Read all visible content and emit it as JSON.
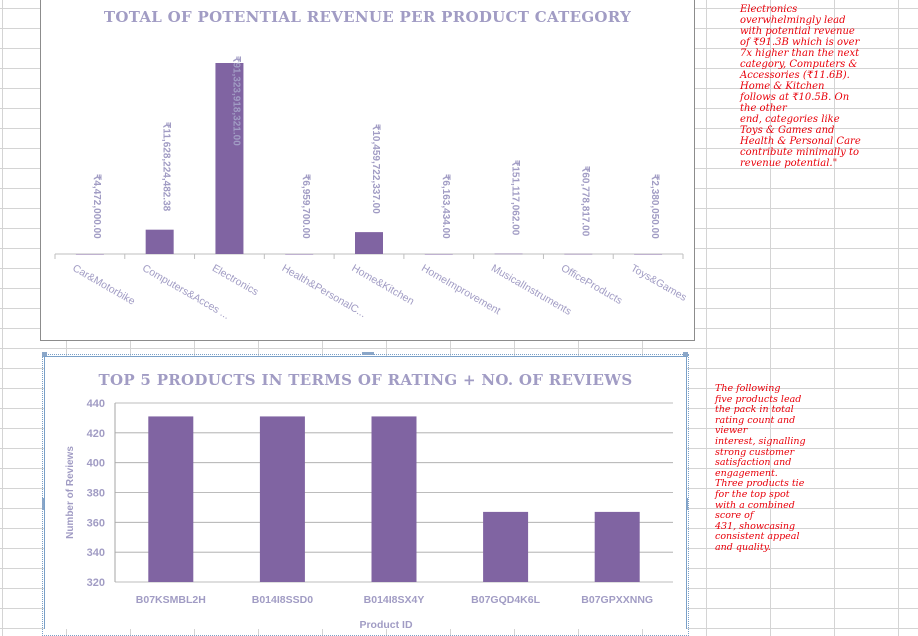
{
  "chart_data": [
    {
      "type": "bar",
      "title": "TOTAL OF POTENTIAL REVENUE PER PRODUCT CATEGORY",
      "categories": [
        "Car&Motorbike",
        "Computers&Acces ...",
        "Electronics",
        "Health&PersonalC...",
        "Home&Kitchen",
        "HomeImprovement",
        "MusicalInstruments",
        "OfficeProducts",
        "Toys&Games"
      ],
      "values": [
        4472000,
        11628224482.38,
        91323918321,
        6959700,
        10459722337,
        6163434,
        151117062,
        60778817,
        2380050
      ],
      "data_labels": [
        "₹4,472,000.00",
        "₹11,628,224,482.38",
        "₹91,323,918,321.00",
        "₹6,959,700.00",
        "₹10,459,722,337.00",
        "₹6,163,434.00",
        "₹151,117,062.00",
        "₹60,778,817.00",
        "₹2,380,050.00"
      ],
      "color": "#8064a2",
      "grid": false,
      "legend": "none"
    },
    {
      "type": "bar",
      "title": "TOP 5 PRODUCTS IN TERMS OF RATING + NO. OF REVIEWS",
      "categories": [
        "B07KSMBL2H",
        "B014I8SSD0",
        "B014I8SX4Y",
        "B07GQD4K6L",
        "B07GPXXNNG"
      ],
      "values": [
        431,
        431,
        431,
        367,
        367
      ],
      "xlabel": "Product  ID",
      "ylabel": "Number of  Reviews",
      "ylim": [
        320,
        440
      ],
      "yticks": [
        "320",
        "340",
        "360",
        "380",
        "400",
        "420",
        "440"
      ],
      "color": "#8064a2",
      "grid": true,
      "legend": "none"
    }
  ],
  "notes": {
    "note1": [
      "Electronics",
      "overwhelmingly lead",
      "with potential revenue",
      "of ₹91.3B which is over",
      "7x higher than the next",
      "category, Computers &",
      "Accessories (₹11.6B).",
      "Home & Kitchen",
      "follows at ₹10.5B. On",
      "the other",
      "end, categories like",
      "Toys & Games and",
      "Health & Personal Care",
      "contribute minimally to",
      "revenue potential.\""
    ],
    "note2": [
      "The following",
      "five products lead",
      "the pack in total",
      "rating count and",
      "viewer",
      "interest, signalling",
      "strong customer",
      "satisfaction and",
      "engagement.",
      "Three products tie",
      "for the top spot",
      "with a combined",
      "score of",
      "431, showcasing",
      "consistent appeal",
      "and quality."
    ]
  },
  "colors": {
    "bar": "#8064a2",
    "text": "#a19cc4",
    "note": "#e8000a"
  }
}
